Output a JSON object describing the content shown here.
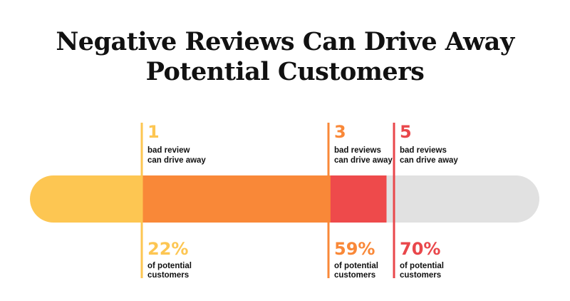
{
  "chart_data": {
    "type": "bar",
    "title_lines": [
      "Negative Reviews Can Drive Away",
      "Potential Customers"
    ],
    "orientation": "horizontal-stacked-progress",
    "xlim": [
      0,
      100
    ],
    "markers": [
      {
        "reviews": "1",
        "top_label_lines": [
          "bad review",
          "can drive away"
        ],
        "percent_label": "22%",
        "value": 22,
        "bottom_label_lines": [
          "of potential",
          "customers"
        ],
        "color": "#FDC652",
        "line_color": "#FDC652"
      },
      {
        "reviews": "3",
        "top_label_lines": [
          "bad reviews",
          "can drive away"
        ],
        "percent_label": "59%",
        "value": 59,
        "bottom_label_lines": [
          "of potential",
          "customers"
        ],
        "color": "#F98838",
        "line_color": "#F98838"
      },
      {
        "reviews": "5",
        "top_label_lines": [
          "bad reviews",
          "can drive away"
        ],
        "percent_label": "70%",
        "value": 70,
        "bottom_label_lines": [
          "of potential",
          "customers"
        ],
        "color": "#E9474B",
        "line_color": "#E9474B"
      }
    ],
    "segments": [
      {
        "from": 0,
        "to": 22,
        "color": "#FDC652"
      },
      {
        "from": 22,
        "to": 59,
        "color": "#F98838"
      },
      {
        "from": 59,
        "to": 70,
        "color": "#EE4A4B"
      },
      {
        "from": 70,
        "to": 100,
        "color": "#E1E1E1"
      }
    ]
  }
}
